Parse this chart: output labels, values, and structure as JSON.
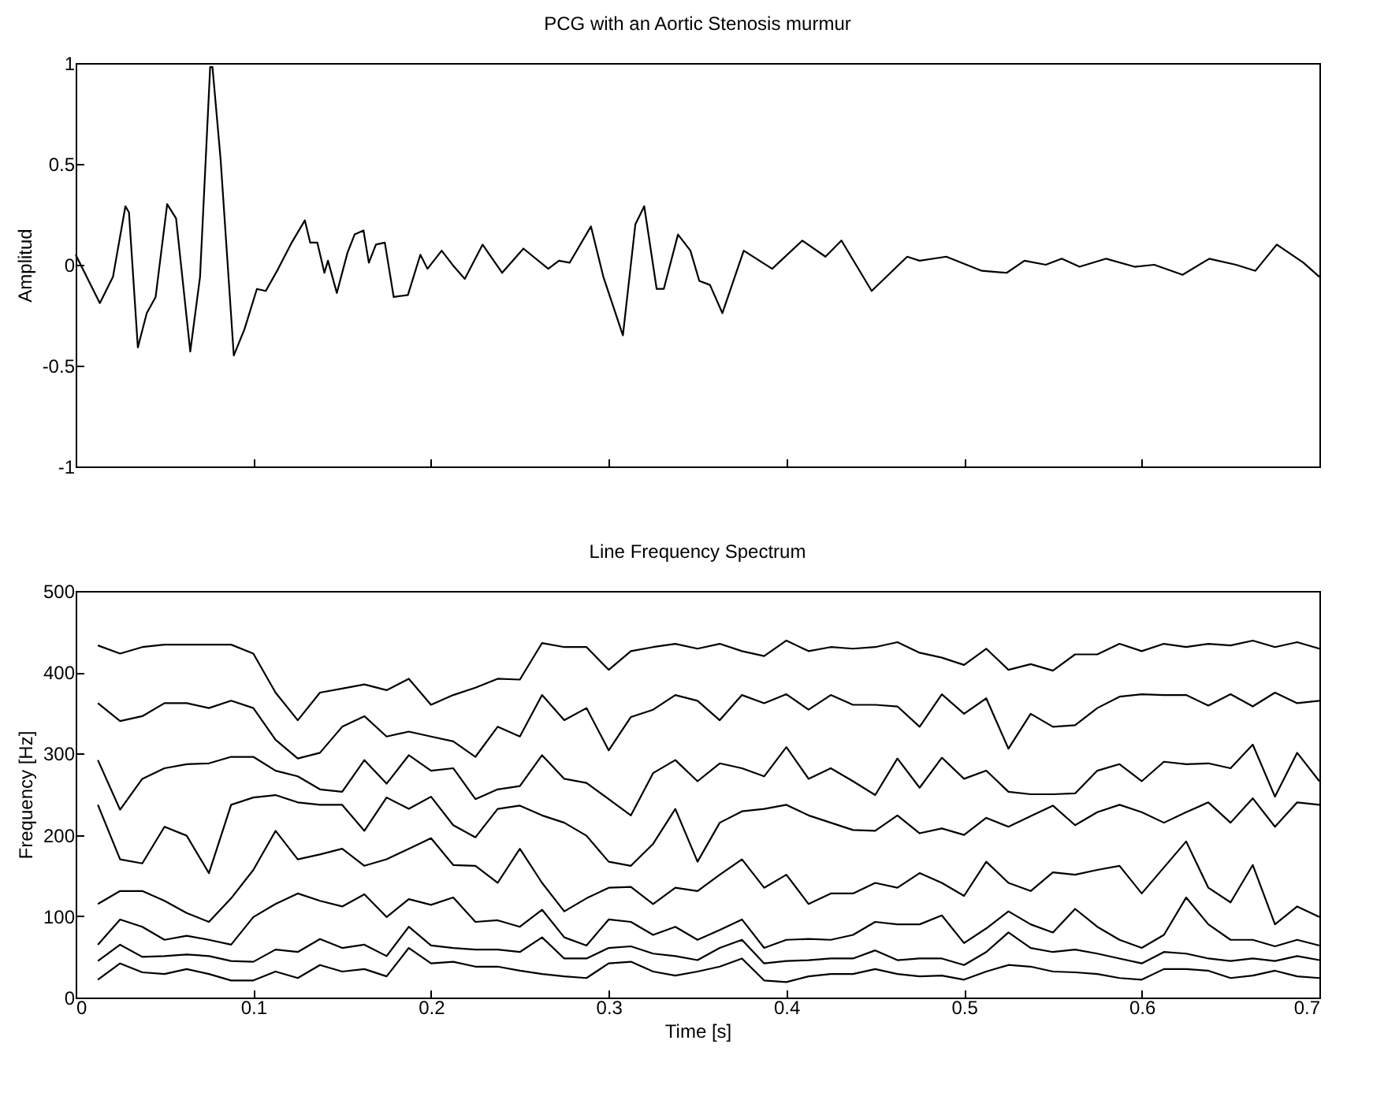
{
  "chart_data": [
    {
      "type": "line",
      "title": "PCG with an Aortic Stenosis murmur",
      "ylabel": "Amplitud",
      "xlim": [
        0,
        0.7
      ],
      "xticks": [
        0,
        0.1,
        0.2,
        0.3,
        0.4,
        0.5,
        0.6,
        0.7
      ],
      "ylim": [
        -1,
        1
      ],
      "yticks": [
        -1,
        -0.5,
        0,
        0.5,
        1
      ],
      "tick_labels": "y",
      "grid": false,
      "marker": "none",
      "line_style": "solid",
      "x": [
        0,
        0.0136,
        0.021,
        0.028,
        0.03,
        0.035,
        0.04,
        0.045,
        0.0515,
        0.0565,
        0.0645,
        0.07,
        0.0757,
        0.077,
        0.0816,
        0.089,
        0.095,
        0.102,
        0.107,
        0.114,
        0.1216,
        0.129,
        0.132,
        0.136,
        0.14,
        0.142,
        0.147,
        0.153,
        0.157,
        0.162,
        0.165,
        0.169,
        0.174,
        0.179,
        0.187,
        0.194,
        0.198,
        0.206,
        0.213,
        0.219,
        0.229,
        0.24,
        0.252,
        0.266,
        0.272,
        0.278,
        0.29,
        0.297,
        0.308,
        0.315,
        0.32,
        0.327,
        0.331,
        0.339,
        0.346,
        0.351,
        0.357,
        0.364,
        0.376,
        0.392,
        0.409,
        0.422,
        0.431,
        0.448,
        0.468,
        0.475,
        0.49,
        0.51,
        0.524,
        0.534,
        0.546,
        0.555,
        0.565,
        0.58,
        0.596,
        0.607,
        0.623,
        0.638,
        0.653,
        0.664,
        0.676,
        0.691,
        0.7
      ],
      "series": [
        {
          "color": "#000000",
          "values": [
            0.05,
            -0.19,
            -0.06,
            0.29,
            0.26,
            -0.41,
            -0.24,
            -0.16,
            0.3,
            0.23,
            -0.43,
            -0.06,
            0.98,
            0.98,
            0.52,
            -0.45,
            -0.32,
            -0.12,
            -0.13,
            -0.02,
            0.11,
            0.22,
            0.11,
            0.11,
            -0.04,
            0.02,
            -0.14,
            0.06,
            0.15,
            0.17,
            0.01,
            0.1,
            0.11,
            -0.16,
            -0.15,
            0.05,
            -0.02,
            0.07,
            -0.01,
            -0.07,
            0.1,
            -0.04,
            0.08,
            -0.02,
            0.02,
            0.01,
            0.19,
            -0.06,
            -0.35,
            0.2,
            0.29,
            -0.12,
            -0.12,
            0.15,
            0.07,
            -0.08,
            -0.1,
            -0.24,
            0.07,
            -0.02,
            0.12,
            0.04,
            0.12,
            -0.13,
            0.04,
            0.02,
            0.04,
            -0.03,
            -0.04,
            0.02,
            0.0,
            0.03,
            -0.01,
            0.03,
            -0.01,
            0.0,
            -0.05,
            0.03,
            0.0,
            -0.03,
            0.1,
            0.01,
            -0.06
          ]
        }
      ]
    },
    {
      "type": "line",
      "title": "Line Frequency Spectrum",
      "xlabel": "Time [s]",
      "ylabel": "Frequency [Hz]",
      "xlim": [
        0,
        0.7
      ],
      "xticks": [
        0,
        0.1,
        0.2,
        0.3,
        0.4,
        0.5,
        0.6,
        0.7
      ],
      "ylim": [
        0,
        500
      ],
      "yticks": [
        0,
        100,
        200,
        300,
        400,
        500
      ],
      "grid": false,
      "marker": "none",
      "line_style": "solid",
      "x": [
        0.0125,
        0.025,
        0.0375,
        0.05,
        0.0625,
        0.075,
        0.0875,
        0.1,
        0.1125,
        0.125,
        0.1375,
        0.15,
        0.1625,
        0.175,
        0.1875,
        0.2,
        0.2125,
        0.225,
        0.2375,
        0.25,
        0.2625,
        0.275,
        0.2875,
        0.3,
        0.3125,
        0.325,
        0.3375,
        0.35,
        0.3625,
        0.375,
        0.3875,
        0.4,
        0.4125,
        0.425,
        0.4375,
        0.45,
        0.4625,
        0.475,
        0.4875,
        0.5,
        0.5125,
        0.525,
        0.5375,
        0.55,
        0.5625,
        0.575,
        0.5875,
        0.6,
        0.6125,
        0.625,
        0.6375,
        0.65,
        0.6625,
        0.675,
        0.6875,
        0.7
      ],
      "series": [
        {
          "color": "#000000",
          "values": [
            433,
            423,
            431,
            434,
            434,
            434,
            434,
            423,
            375,
            341,
            375,
            380,
            385,
            378,
            392,
            360,
            372,
            381,
            392,
            391,
            436,
            431,
            431,
            403,
            426,
            431,
            435,
            429,
            435,
            426,
            420,
            439,
            426,
            431,
            429,
            431,
            437,
            424,
            418,
            409,
            429,
            403,
            410,
            402,
            422,
            422,
            435,
            426,
            435,
            431,
            435,
            433,
            439,
            431,
            437,
            429
          ]
        },
        {
          "color": "#000000",
          "values": [
            362,
            340,
            346,
            362,
            362,
            356,
            365,
            356,
            317,
            294,
            301,
            333,
            346,
            321,
            327,
            321,
            315,
            296,
            333,
            321,
            372,
            341,
            356,
            304,
            345,
            354,
            372,
            365,
            341,
            372,
            362,
            373,
            354,
            372,
            360,
            360,
            358,
            333,
            373,
            349,
            368,
            306,
            349,
            333,
            335,
            356,
            370,
            373,
            372,
            372,
            359,
            373,
            358,
            375,
            362,
            365
          ]
        },
        {
          "color": "#000000",
          "values": [
            292,
            231,
            269,
            282,
            287,
            288,
            296,
            296,
            279,
            272,
            256,
            253,
            292,
            263,
            298,
            279,
            282,
            244,
            256,
            260,
            298,
            269,
            264,
            244,
            224,
            276,
            292,
            266,
            288,
            282,
            272,
            308,
            269,
            282,
            266,
            249,
            294,
            258,
            295,
            269,
            279,
            253,
            250,
            250,
            251,
            279,
            287,
            266,
            290,
            287,
            288,
            282,
            311,
            247,
            301,
            266
          ]
        },
        {
          "color": "#000000",
          "values": [
            237,
            170,
            165,
            210,
            199,
            153,
            237,
            246,
            249,
            240,
            237,
            237,
            205,
            246,
            232,
            247,
            212,
            197,
            232,
            236,
            224,
            215,
            199,
            167,
            162,
            189,
            232,
            167,
            215,
            229,
            232,
            237,
            224,
            215,
            206,
            205,
            224,
            202,
            208,
            200,
            221,
            210,
            223,
            236,
            212,
            228,
            237,
            228,
            215,
            228,
            240,
            215,
            245,
            210,
            240,
            237
          ]
        },
        {
          "color": "#000000",
          "values": [
            115,
            131,
            131,
            119,
            104,
            93,
            122,
            157,
            205,
            170,
            176,
            183,
            162,
            170,
            183,
            196,
            163,
            162,
            141,
            183,
            141,
            106,
            122,
            135,
            136,
            115,
            135,
            131,
            151,
            170,
            135,
            151,
            115,
            128,
            128,
            141,
            135,
            153,
            141,
            125,
            167,
            141,
            131,
            154,
            151,
            157,
            162,
            128,
            160,
            192,
            135,
            117,
            163,
            90,
            112,
            99
          ]
        },
        {
          "color": "#000000",
          "values": [
            65,
            96,
            87,
            71,
            76,
            71,
            65,
            99,
            115,
            128,
            119,
            112,
            127,
            99,
            121,
            114,
            123,
            93,
            95,
            87,
            108,
            74,
            64,
            96,
            93,
            77,
            87,
            71,
            83,
            96,
            61,
            71,
            72,
            71,
            77,
            93,
            90,
            90,
            101,
            67,
            85,
            106,
            90,
            80,
            109,
            87,
            71,
            61,
            77,
            123,
            90,
            71,
            71,
            63,
            71,
            64
          ]
        },
        {
          "color": "#000000",
          "values": [
            45,
            65,
            50,
            51,
            53,
            51,
            45,
            44,
            59,
            56,
            72,
            61,
            65,
            51,
            87,
            64,
            61,
            59,
            59,
            56,
            74,
            48,
            48,
            61,
            63,
            54,
            51,
            46,
            61,
            71,
            42,
            45,
            46,
            48,
            48,
            58,
            46,
            48,
            48,
            40,
            56,
            80,
            61,
            56,
            59,
            54,
            48,
            42,
            56,
            54,
            48,
            45,
            48,
            45,
            51,
            46
          ]
        },
        {
          "color": "#000000",
          "values": [
            22,
            42,
            31,
            29,
            35,
            29,
            21,
            21,
            32,
            24,
            40,
            32,
            35,
            26,
            61,
            42,
            44,
            38,
            38,
            33,
            29,
            26,
            24,
            42,
            44,
            32,
            27,
            32,
            38,
            48,
            21,
            19,
            26,
            29,
            29,
            35,
            29,
            26,
            27,
            22,
            32,
            40,
            38,
            32,
            31,
            29,
            24,
            22,
            35,
            35,
            33,
            24,
            27,
            33,
            26,
            24
          ]
        }
      ]
    }
  ]
}
